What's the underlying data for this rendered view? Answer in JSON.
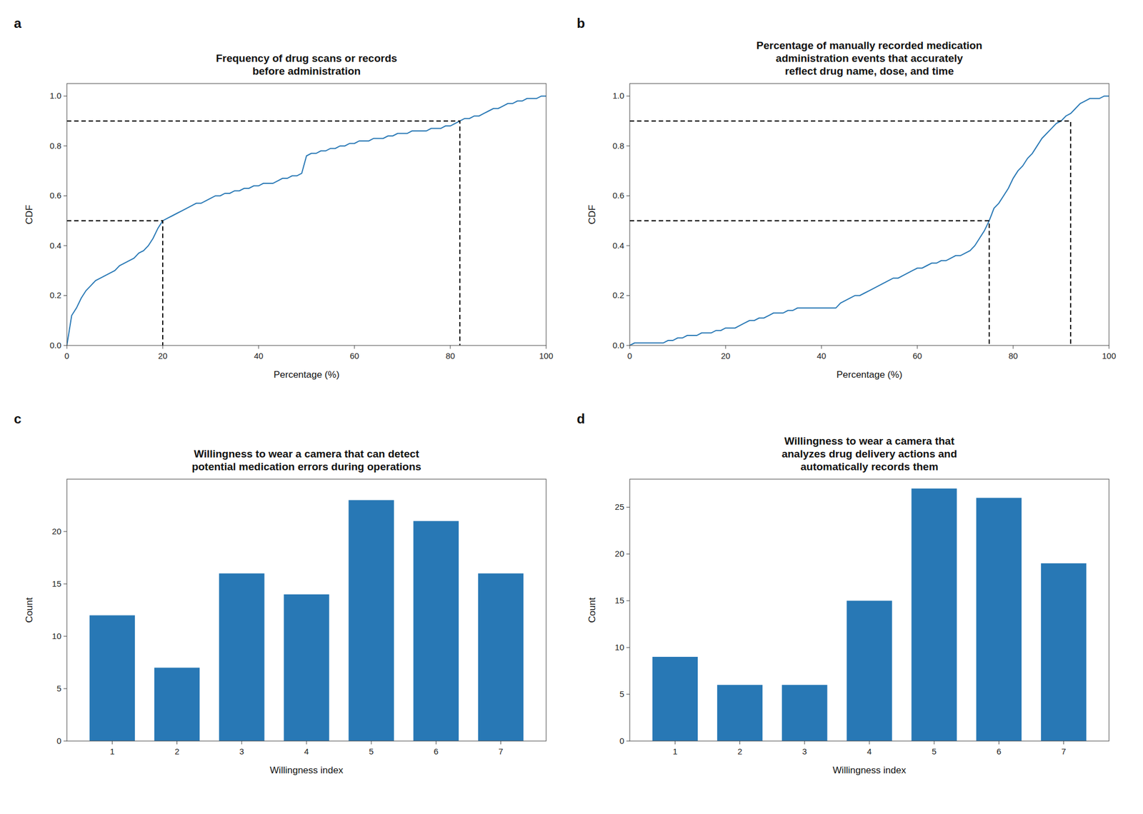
{
  "chart_data": [
    {
      "type": "line",
      "title": "Frequency of drug scans or records\nbefore administration",
      "x_label": "Percentage (%)",
      "y_label": "CDF",
      "annotations": [
        "a"
      ],
      "x": [
        0,
        1,
        2,
        3,
        4,
        5,
        6,
        7,
        8,
        9,
        10,
        11,
        12,
        13,
        14,
        15,
        16,
        17,
        18,
        19,
        20,
        21,
        22,
        23,
        24,
        25,
        26,
        27,
        28,
        29,
        30,
        31,
        32,
        33,
        34,
        35,
        36,
        37,
        38,
        39,
        40,
        41,
        42,
        43,
        44,
        45,
        46,
        47,
        48,
        49,
        50,
        51,
        52,
        53,
        54,
        55,
        56,
        57,
        58,
        59,
        60,
        61,
        62,
        63,
        64,
        65,
        66,
        67,
        68,
        69,
        70,
        71,
        72,
        73,
        74,
        75,
        76,
        77,
        78,
        79,
        80,
        81,
        82,
        83,
        84,
        85,
        86,
        87,
        88,
        89,
        90,
        91,
        92,
        93,
        94,
        95,
        96,
        97,
        98,
        99,
        100
      ],
      "series": [
        {
          "color": "#2878b5",
          "line_style": "solid",
          "values": [
            0.0,
            0.12,
            0.15,
            0.19,
            0.22,
            0.24,
            0.26,
            0.27,
            0.28,
            0.29,
            0.3,
            0.32,
            0.33,
            0.34,
            0.35,
            0.37,
            0.38,
            0.4,
            0.43,
            0.47,
            0.5,
            0.51,
            0.52,
            0.53,
            0.54,
            0.55,
            0.56,
            0.57,
            0.57,
            0.58,
            0.59,
            0.6,
            0.6,
            0.61,
            0.61,
            0.62,
            0.62,
            0.63,
            0.63,
            0.64,
            0.64,
            0.65,
            0.65,
            0.65,
            0.66,
            0.67,
            0.67,
            0.68,
            0.68,
            0.69,
            0.76,
            0.77,
            0.77,
            0.78,
            0.78,
            0.79,
            0.79,
            0.8,
            0.8,
            0.81,
            0.81,
            0.82,
            0.82,
            0.82,
            0.83,
            0.83,
            0.83,
            0.84,
            0.84,
            0.85,
            0.85,
            0.85,
            0.86,
            0.86,
            0.86,
            0.86,
            0.87,
            0.87,
            0.87,
            0.88,
            0.88,
            0.89,
            0.9,
            0.91,
            0.91,
            0.92,
            0.92,
            0.93,
            0.94,
            0.95,
            0.95,
            0.96,
            0.97,
            0.97,
            0.98,
            0.98,
            0.99,
            0.99,
            0.99,
            1.0,
            1.0
          ]
        },
        {
          "color": "black",
          "line_style": "dashed",
          "x": [
            0,
            20,
            20
          ],
          "values": [
            0.5,
            0.5,
            0
          ]
        },
        {
          "color": "black",
          "line_style": "dashed",
          "x": [
            0,
            82,
            82
          ],
          "values": [
            0.9,
            0.9,
            0
          ]
        }
      ],
      "xlim": [
        0,
        100
      ],
      "xticks": [
        0,
        20,
        40,
        60,
        80,
        100
      ],
      "ylim": [
        0.0,
        1.05
      ],
      "yticks": [
        {
          "value": 0.0,
          "label": "0.0"
        },
        0.2,
        0.4,
        0.6,
        0.8,
        {
          "value": 1.0,
          "label": "1.0"
        }
      ],
      "grid": false
    },
    {
      "type": "line",
      "title": "Percentage of manually recorded medication\nadministration events that accurately\nreflect drug name, dose, and time",
      "x_label": "Percentage (%)",
      "y_label": "CDF",
      "annotations": [
        "b"
      ],
      "x": [
        0,
        1,
        2,
        3,
        4,
        5,
        6,
        7,
        8,
        9,
        10,
        11,
        12,
        13,
        14,
        15,
        16,
        17,
        18,
        19,
        20,
        21,
        22,
        23,
        24,
        25,
        26,
        27,
        28,
        29,
        30,
        31,
        32,
        33,
        34,
        35,
        36,
        37,
        38,
        39,
        40,
        41,
        42,
        43,
        44,
        45,
        46,
        47,
        48,
        49,
        50,
        51,
        52,
        53,
        54,
        55,
        56,
        57,
        58,
        59,
        60,
        61,
        62,
        63,
        64,
        65,
        66,
        67,
        68,
        69,
        70,
        71,
        72,
        73,
        74,
        75,
        76,
        77,
        78,
        79,
        80,
        81,
        82,
        83,
        84,
        85,
        86,
        87,
        88,
        89,
        90,
        91,
        92,
        93,
        94,
        95,
        96,
        97,
        98,
        99,
        100
      ],
      "series": [
        {
          "color": "#2878b5",
          "line_style": "solid",
          "values": [
            0.0,
            0.01,
            0.01,
            0.01,
            0.01,
            0.01,
            0.01,
            0.01,
            0.02,
            0.02,
            0.03,
            0.03,
            0.04,
            0.04,
            0.04,
            0.05,
            0.05,
            0.05,
            0.06,
            0.06,
            0.07,
            0.07,
            0.07,
            0.08,
            0.09,
            0.1,
            0.1,
            0.11,
            0.11,
            0.12,
            0.13,
            0.13,
            0.13,
            0.14,
            0.14,
            0.15,
            0.15,
            0.15,
            0.15,
            0.15,
            0.15,
            0.15,
            0.15,
            0.15,
            0.17,
            0.18,
            0.19,
            0.2,
            0.2,
            0.21,
            0.22,
            0.23,
            0.24,
            0.25,
            0.26,
            0.27,
            0.27,
            0.28,
            0.29,
            0.3,
            0.31,
            0.31,
            0.32,
            0.33,
            0.33,
            0.34,
            0.34,
            0.35,
            0.36,
            0.36,
            0.37,
            0.38,
            0.4,
            0.43,
            0.46,
            0.5,
            0.55,
            0.57,
            0.6,
            0.63,
            0.67,
            0.7,
            0.72,
            0.75,
            0.77,
            0.8,
            0.83,
            0.85,
            0.87,
            0.89,
            0.9,
            0.92,
            0.93,
            0.95,
            0.97,
            0.98,
            0.99,
            0.99,
            0.99,
            1.0,
            1.0
          ]
        },
        {
          "color": "black",
          "line_style": "dashed",
          "x": [
            0,
            75,
            75
          ],
          "values": [
            0.5,
            0.5,
            0
          ]
        },
        {
          "color": "black",
          "line_style": "dashed",
          "x": [
            0,
            92,
            92
          ],
          "values": [
            0.9,
            0.9,
            0
          ]
        }
      ],
      "xlim": [
        0,
        100
      ],
      "xticks": [
        0,
        20,
        40,
        60,
        80,
        100
      ],
      "ylim": [
        0.0,
        1.05
      ],
      "yticks": [
        {
          "value": 0.0,
          "label": "0.0"
        },
        0.2,
        0.4,
        0.6,
        0.8,
        {
          "value": 1.0,
          "label": "1.0"
        }
      ],
      "grid": false
    },
    {
      "type": "bar",
      "title": "Willingness to wear a camera that can detect\npotential medication errors during operations",
      "x_label": "Willingness index",
      "y_label": "Count",
      "annotations": [
        "c"
      ],
      "x": [
        1,
        2,
        3,
        4,
        5,
        6,
        7
      ],
      "values": [
        12,
        7,
        16,
        14,
        23,
        21,
        16
      ],
      "color": "#2878b5",
      "xlim": [
        0.3,
        7.7
      ],
      "xticks": [
        1,
        2,
        3,
        4,
        5,
        6,
        7
      ],
      "ylim": [
        0,
        25
      ],
      "yticks": [
        0,
        5,
        10,
        15,
        20
      ],
      "grid": false
    },
    {
      "type": "bar",
      "title": "Willingness to wear a camera that\nanalyzes drug delivery actions and\nautomatically records them",
      "x_label": "Willingness index",
      "y_label": "Count",
      "annotations": [
        "d"
      ],
      "x": [
        1,
        2,
        3,
        4,
        5,
        6,
        7
      ],
      "values": [
        9,
        6,
        6,
        15,
        27,
        26,
        19
      ],
      "color": "#2878b5",
      "xlim": [
        0.3,
        7.7
      ],
      "xticks": [
        1,
        2,
        3,
        4,
        5,
        6,
        7
      ],
      "ylim": [
        0,
        28
      ],
      "yticks": [
        0,
        5,
        10,
        15,
        20,
        25
      ],
      "grid": false
    }
  ]
}
